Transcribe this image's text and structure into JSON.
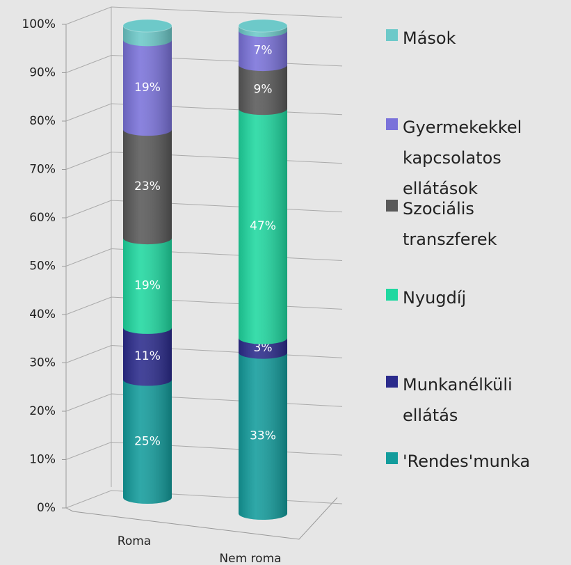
{
  "chart_data": {
    "type": "bar3d",
    "categories": [
      "Roma",
      "Nem roma"
    ],
    "series": [
      {
        "name": "'Rendes'munka",
        "color": "#139c9c",
        "values": [
          25,
          33
        ],
        "value_labels": [
          "25%",
          "33%"
        ]
      },
      {
        "name": "Munkanélküli ellátás",
        "color": "#2b2b8c",
        "values": [
          11,
          3
        ],
        "value_labels": [
          "11%",
          "3%"
        ]
      },
      {
        "name": "Nyugdíj",
        "color": "#1fd8a0",
        "values": [
          19,
          47
        ],
        "value_labels": [
          "19%",
          "47%"
        ]
      },
      {
        "name": "Szociális transzferek",
        "color": "#595959",
        "values": [
          23,
          9
        ],
        "value_labels": [
          "23%",
          "9%"
        ]
      },
      {
        "name": "Gyermekekkel kapcsolatos ellátások",
        "color": "#7a72da",
        "values": [
          19,
          7
        ],
        "value_labels": [
          "19%",
          "7%"
        ]
      },
      {
        "name": "Mások",
        "color": "#6dc9c9",
        "values": [
          3,
          1
        ]
      }
    ],
    "ylim": [
      0,
      100
    ],
    "yticks": [
      {
        "value": 0,
        "label": "0%"
      },
      {
        "value": 10,
        "label": "10%"
      },
      {
        "value": 20,
        "label": "20%"
      },
      {
        "value": 30,
        "label": "30%"
      },
      {
        "value": 40,
        "label": "40%"
      },
      {
        "value": 50,
        "label": "50%"
      },
      {
        "value": 60,
        "label": "60%"
      },
      {
        "value": 70,
        "label": "70%"
      },
      {
        "value": 80,
        "label": "80%"
      },
      {
        "value": 90,
        "label": "90%"
      },
      {
        "value": 100,
        "label": "100%"
      }
    ],
    "grid": true
  }
}
